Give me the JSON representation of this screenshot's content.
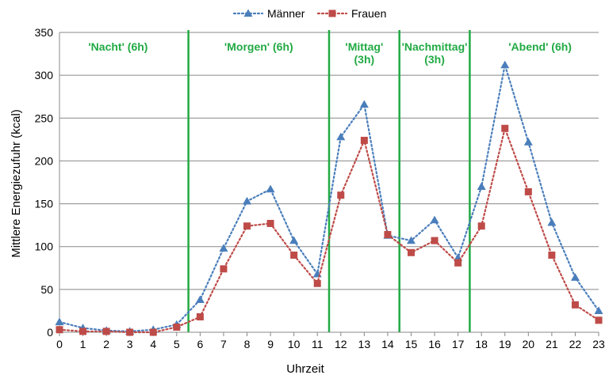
{
  "chart_data": {
    "type": "line",
    "xlabel": "Uhrzeit",
    "ylabel": "Mittlere Energiezufuhr (kcal)",
    "ylim": [
      0,
      350
    ],
    "yticks": [
      0,
      50,
      100,
      150,
      200,
      250,
      300,
      350
    ],
    "grid": "horizontal",
    "legend": "top-center",
    "categories": [
      "0",
      "1",
      "2",
      "3",
      "4",
      "5",
      "6",
      "7",
      "8",
      "9",
      "10",
      "11",
      "12",
      "13",
      "14",
      "15",
      "16",
      "17",
      "18",
      "19",
      "20",
      "21",
      "22",
      "23"
    ],
    "series": [
      {
        "name": "Männer",
        "color": "#4a7ebb",
        "marker": "triangle",
        "line_style": "dotted",
        "values": [
          12,
          5,
          2,
          1,
          3,
          9,
          38,
          98,
          153,
          167,
          107,
          68,
          228,
          266,
          113,
          107,
          131,
          87,
          170,
          312,
          222,
          128,
          64,
          25
        ]
      },
      {
        "name": "Frauen",
        "color": "#be4b48",
        "marker": "square",
        "line_style": "dotted",
        "values": [
          3,
          1,
          1,
          0,
          0,
          6,
          18,
          74,
          124,
          127,
          90,
          57,
          160,
          224,
          114,
          93,
          107,
          81,
          124,
          238,
          164,
          90,
          32,
          14
        ]
      }
    ],
    "separator_color": "#22aa44",
    "separators_after_hour": [
      5.5,
      11.5,
      14.5,
      17.5,
      23.5
    ],
    "periods": [
      {
        "label_lines": [
          "'Nacht' (6h)"
        ],
        "from": 0,
        "to": 5
      },
      {
        "label_lines": [
          "'Morgen' (6h)"
        ],
        "from": 6,
        "to": 11
      },
      {
        "label_lines": [
          "'Mittag'",
          "(3h)"
        ],
        "from": 12,
        "to": 14
      },
      {
        "label_lines": [
          "'Nachmittag'",
          "(3h)"
        ],
        "from": 15,
        "to": 17
      },
      {
        "label_lines": [
          "'Abend' (6h)"
        ],
        "from": 18,
        "to": 23
      }
    ]
  }
}
